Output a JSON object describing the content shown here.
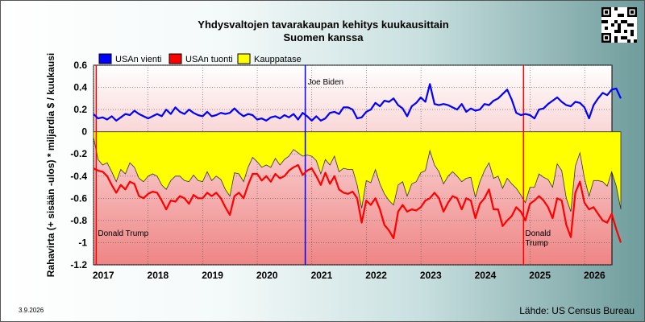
{
  "title_line1": "Yhdysvaltojen tavarakaupan kehitys kuukausittain",
  "title_line2": "Suomen kanssa",
  "date": "3.9.2026",
  "source": "Lähde: US Census Bureau",
  "chart_data": {
    "type": "line",
    "ylabel": "Rahavirta (+ sisään -ulos)  *  miljardia $ / kuukausi",
    "ylim": [
      -1.2,
      0.6
    ],
    "yticks": [
      0.6,
      0.4,
      0.2,
      0,
      -0.2,
      -0.4,
      -0.6,
      -0.8,
      -1,
      -1.2
    ],
    "ytick_labels": [
      "0.6",
      "0.4",
      "0.2",
      "0",
      "-0.2",
      "-0.4",
      "-0.6",
      "-0.8",
      "-1",
      "-1.2"
    ],
    "xlim": [
      2017.0,
      2026.5
    ],
    "xtick_labels": [
      "2017",
      "2018",
      "2019",
      "2020",
      "2021",
      "2022",
      "2023",
      "2024",
      "2025",
      "2026"
    ],
    "grid": true,
    "legend_position": "top-left",
    "colors": {
      "vienti": "#0000ff",
      "tuonti": "#ff0000",
      "kauppatase": "#ffff00",
      "events": [
        "#ff0000",
        "#0000ff",
        "#ff0000"
      ]
    },
    "events": [
      {
        "x": 2017.05,
        "label": "Donald Trump"
      },
      {
        "x": 2020.88,
        "label": "Joe Biden"
      },
      {
        "x": 2024.88,
        "label": "Donald Trump"
      }
    ],
    "series": [
      {
        "name": "USAn vienti",
        "x_start": 2017.0,
        "x_step": 0.0833,
        "values": [
          0.16,
          0.12,
          0.13,
          0.11,
          0.14,
          0.1,
          0.13,
          0.16,
          0.15,
          0.19,
          0.16,
          0.14,
          0.12,
          0.14,
          0.16,
          0.14,
          0.2,
          0.16,
          0.22,
          0.18,
          0.16,
          0.2,
          0.17,
          0.15,
          0.14,
          0.18,
          0.14,
          0.15,
          0.17,
          0.16,
          0.17,
          0.21,
          0.17,
          0.14,
          0.16,
          0.15,
          0.11,
          0.12,
          0.1,
          0.13,
          0.14,
          0.12,
          0.15,
          0.13,
          0.16,
          0.11,
          0.17,
          0.14,
          0.1,
          0.14,
          0.1,
          0.12,
          0.17,
          0.18,
          0.16,
          0.22,
          0.22,
          0.2,
          0.12,
          0.13,
          0.18,
          0.2,
          0.26,
          0.23,
          0.28,
          0.27,
          0.3,
          0.24,
          0.21,
          0.14,
          0.23,
          0.26,
          0.31,
          0.27,
          0.43,
          0.25,
          0.24,
          0.25,
          0.24,
          0.22,
          0.2,
          0.25,
          0.18,
          0.21,
          0.19,
          0.2,
          0.25,
          0.24,
          0.28,
          0.3,
          0.34,
          0.38,
          0.29,
          0.17,
          0.15,
          0.16,
          0.15,
          0.12,
          0.2,
          0.21,
          0.25,
          0.28,
          0.31,
          0.27,
          0.24,
          0.23,
          0.27,
          0.26,
          0.22,
          0.12,
          0.24,
          0.3,
          0.35,
          0.33,
          0.38,
          0.39,
          0.3
        ]
      },
      {
        "name": "USAn tuonti",
        "x_start": 2017.0,
        "x_step": 0.0833,
        "values": [
          -0.33,
          -0.35,
          -0.36,
          -0.4,
          -0.48,
          -0.55,
          -0.48,
          -0.52,
          -0.45,
          -0.47,
          -0.58,
          -0.6,
          -0.56,
          -0.54,
          -0.55,
          -0.62,
          -0.7,
          -0.62,
          -0.63,
          -0.58,
          -0.6,
          -0.65,
          -0.57,
          -0.6,
          -0.6,
          -0.55,
          -0.58,
          -0.55,
          -0.6,
          -0.68,
          -0.75,
          -0.58,
          -0.55,
          -0.6,
          -0.48,
          -0.38,
          -0.38,
          -0.44,
          -0.4,
          -0.45,
          -0.38,
          -0.42,
          -0.4,
          -0.35,
          -0.32,
          -0.3,
          -0.39,
          -0.35,
          -0.33,
          -0.4,
          -0.48,
          -0.37,
          -0.47,
          -0.4,
          -0.52,
          -0.55,
          -0.56,
          -0.54,
          -0.6,
          -0.82,
          -0.62,
          -0.66,
          -0.6,
          -0.7,
          -0.84,
          -0.89,
          -0.96,
          -0.72,
          -0.66,
          -0.72,
          -0.7,
          -0.71,
          -0.68,
          -0.62,
          -0.6,
          -0.55,
          -0.6,
          -0.72,
          -0.64,
          -0.58,
          -0.6,
          -0.7,
          -0.6,
          -0.62,
          -0.78,
          -0.65,
          -0.6,
          -0.52,
          -0.7,
          -0.7,
          -0.85,
          -0.8,
          -0.76,
          -0.68,
          -0.72,
          -0.8,
          -0.65,
          -0.62,
          -0.58,
          -0.62,
          -0.68,
          -0.78,
          -0.6,
          -0.62,
          -0.84,
          -0.95,
          -0.55,
          -0.45,
          -0.64,
          -0.7,
          -0.68,
          -0.74,
          -0.8,
          -0.82,
          -0.74,
          -0.88,
          -1.0
        ]
      },
      {
        "name": "Kauppatase",
        "x_start": 2017.0,
        "x_step": 0.0833,
        "values": [
          -0.05,
          -0.25,
          -0.3,
          -0.28,
          -0.36,
          -0.45,
          -0.34,
          -0.38,
          -0.28,
          -0.32,
          -0.42,
          -0.45,
          -0.4,
          -0.38,
          -0.4,
          -0.48,
          -0.52,
          -0.44,
          -0.4,
          -0.4,
          -0.44,
          -0.45,
          -0.39,
          -0.44,
          -0.45,
          -0.36,
          -0.44,
          -0.4,
          -0.43,
          -0.52,
          -0.58,
          -0.37,
          -0.38,
          -0.45,
          -0.32,
          -0.23,
          -0.27,
          -0.32,
          -0.3,
          -0.32,
          -0.24,
          -0.3,
          -0.25,
          -0.22,
          -0.16,
          -0.19,
          -0.22,
          -0.21,
          -0.22,
          -0.26,
          -0.38,
          -0.25,
          -0.3,
          -0.22,
          -0.36,
          -0.33,
          -0.34,
          -0.34,
          -0.48,
          -0.69,
          -0.44,
          -0.46,
          -0.34,
          -0.47,
          -0.56,
          -0.62,
          -0.66,
          -0.48,
          -0.45,
          -0.58,
          -0.47,
          -0.45,
          -0.37,
          -0.35,
          -0.17,
          -0.3,
          -0.36,
          -0.47,
          -0.4,
          -0.36,
          -0.4,
          -0.45,
          -0.42,
          -0.41,
          -0.59,
          -0.45,
          -0.35,
          -0.28,
          -0.42,
          -0.4,
          -0.51,
          -0.42,
          -0.47,
          -0.51,
          -0.57,
          -0.64,
          -0.5,
          -0.5,
          -0.38,
          -0.41,
          -0.43,
          -0.5,
          -0.29,
          -0.35,
          -0.6,
          -0.72,
          -0.31,
          -0.19,
          -0.42,
          -0.58,
          -0.44,
          -0.44,
          -0.45,
          -0.49,
          -0.36,
          -0.49,
          -0.7
        ]
      }
    ]
  }
}
